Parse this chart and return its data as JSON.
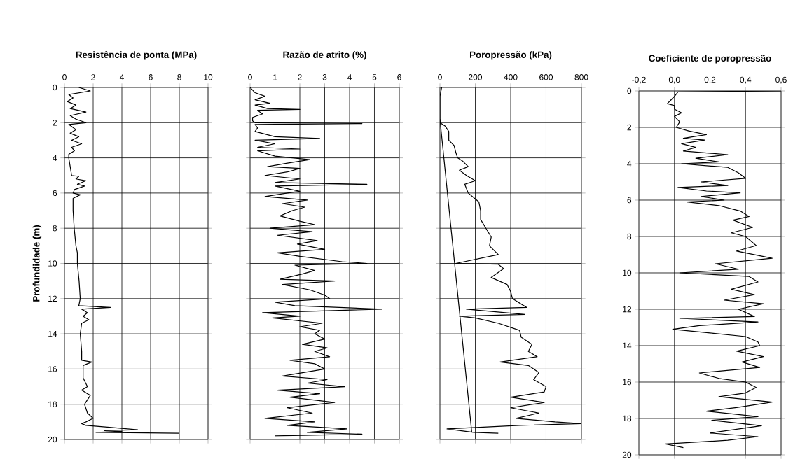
{
  "chart_data": [
    {
      "type": "line",
      "title": "Resistência de ponta (MPa)",
      "ylabel": "Profundidade (m)",
      "xlim": [
        0,
        10
      ],
      "xticks": [
        0,
        2,
        4,
        6,
        8,
        10
      ],
      "ylim": [
        20,
        0
      ],
      "yticks": [
        0,
        2,
        4,
        6,
        8,
        10,
        12,
        14,
        16,
        18,
        20
      ],
      "grid": true,
      "series": [
        {
          "color": "#000000",
          "x": [
            1.0,
            1.8,
            0.3,
            0.6,
            0.2,
            0.8,
            0.4,
            1.5,
            0.4,
            0.8,
            1.5,
            0.3,
            0.8,
            0.4,
            1.0,
            0.5,
            1.2,
            0.5,
            0.7,
            0.3,
            0.3,
            0.4,
            0.5,
            1.0,
            0.8,
            1.5,
            0.9,
            1.4,
            0.7,
            0.6,
            1.1,
            0.6,
            0.6,
            0.68,
            0.8,
            0.9,
            0.9,
            1.02,
            1.1,
            1.0,
            3.2,
            1.2,
            1.6,
            1.3,
            1.7,
            1.2,
            1.1,
            1.2,
            1.2,
            1.9,
            1.3,
            1.3,
            1.6,
            1.2,
            1.8,
            1.4,
            1.6,
            2.0,
            1.5,
            1.2,
            1.5,
            3.0,
            5.1,
            2.8,
            4.0,
            2.2,
            8.0
          ],
          "values": [
            0,
            0.2,
            0.4,
            0.6,
            0.8,
            1.0,
            1.2,
            1.4,
            1.6,
            1.8,
            2.0,
            2.1,
            2.4,
            2.6,
            2.8,
            3.0,
            3.2,
            3.4,
            3.6,
            3.8,
            4.0,
            4.5,
            5.0,
            5.05,
            5.2,
            5.3,
            5.5,
            5.6,
            5.8,
            6.0,
            6.1,
            6.3,
            7,
            8,
            9,
            9.4,
            10,
            11,
            12,
            12.4,
            12.5,
            12.6,
            12.8,
            13.0,
            13.2,
            13.4,
            14,
            15,
            15.5,
            15.6,
            15.8,
            16.5,
            17,
            17.2,
            17.5,
            18,
            18.5,
            18.8,
            19.0,
            19.1,
            19.2,
            19.3,
            19.45,
            19.5,
            19.55,
            19.6,
            19.65
          ]
        }
      ]
    },
    {
      "type": "line",
      "title": "Razão de atrito (%)",
      "xlim": [
        0,
        6
      ],
      "xticks": [
        0,
        1,
        2,
        3,
        4,
        5,
        6
      ],
      "ylim": [
        20,
        0
      ],
      "yticks": [
        0,
        2,
        4,
        6,
        8,
        10,
        12,
        14,
        16,
        18,
        20
      ],
      "grid": true,
      "tick_labels": "x",
      "series": [
        {
          "color": "#000000",
          "x": [
            0.0,
            0.2,
            0.6,
            0.2,
            0.8,
            0.2,
            0.7,
            2.0,
            0.3,
            0.5,
            0.1,
            0.1,
            0.2,
            4.5,
            0.2,
            0.3,
            0.2,
            1.0,
            2.8,
            0.2,
            1.0,
            0.3,
            2.0,
            0.3,
            1.0,
            2.4,
            1.5,
            0.7,
            2.0,
            1.5,
            0.6,
            2.0,
            1.0,
            4.7,
            1.0,
            2.0,
            1.5,
            0.6,
            2.3,
            1.3,
            2.2,
            1.7,
            1.2,
            2.0,
            2.6,
            0.8,
            2.5,
            1.1,
            2.7,
            1.9,
            3.0,
            1.1,
            2.0,
            3.7,
            4.7,
            1.8,
            2.6,
            2.1,
            1.2,
            3.4,
            1.3,
            2.4,
            3.0,
            3.2,
            1.0,
            1.8,
            5.3,
            0.5,
            2.0,
            0.9,
            2.9,
            2.0,
            2.8,
            2.6,
            3.0,
            2.1,
            3.1,
            2.6,
            3.2,
            1.6,
            2.6,
            3.0,
            1.3,
            3.1,
            2.3,
            3.8,
            1.1,
            2.8,
            1.6,
            3.4,
            1.5,
            2.5,
            0.6,
            2.6,
            1.5,
            3.9,
            2.3,
            4.5,
            1.0
          ],
          "values": [
            0,
            0.3,
            0.5,
            0.7,
            0.9,
            1.0,
            1.2,
            1.25,
            1.3,
            1.5,
            1.7,
            1.9,
            2.0,
            2.05,
            2.1,
            2.3,
            2.5,
            2.8,
            2.9,
            3.0,
            3.2,
            3.4,
            3.5,
            3.6,
            3.9,
            4.1,
            4.3,
            4.5,
            4.6,
            4.8,
            5.0,
            5.2,
            5.4,
            5.5,
            5.6,
            5.9,
            6.0,
            6.2,
            6.4,
            6.6,
            6.8,
            7.0,
            7.3,
            7.6,
            7.8,
            8.0,
            8.2,
            8.4,
            8.7,
            8.9,
            9.2,
            9.4,
            9.6,
            9.9,
            10.0,
            10.1,
            10.4,
            10.6,
            10.9,
            11.0,
            11.2,
            11.5,
            11.8,
            12.0,
            12.2,
            12.4,
            12.6,
            12.8,
            13.0,
            13.1,
            13.4,
            13.6,
            13.8,
            14.0,
            14.3,
            14.6,
            14.8,
            15.0,
            15.3,
            15.5,
            15.7,
            16.0,
            16.4,
            16.6,
            16.8,
            17.0,
            17.2,
            17.4,
            17.6,
            17.9,
            18.2,
            18.5,
            18.8,
            19.0,
            19.2,
            19.4,
            19.6,
            19.7,
            19.8
          ]
        }
      ]
    },
    {
      "type": "line",
      "title": "Poropressão (kPa)",
      "xlim": [
        0,
        800
      ],
      "xticks": [
        0,
        200,
        400,
        600,
        800
      ],
      "ylim": [
        20,
        0
      ],
      "yticks": [
        0,
        2,
        4,
        6,
        8,
        10,
        12,
        14,
        16,
        18,
        20
      ],
      "grid": true,
      "tick_labels": "x",
      "series": [
        {
          "color": "#000000",
          "x": [
            10,
            0,
            0,
            30,
            50,
            50,
            80,
            90,
            100,
            130,
            160,
            110,
            150,
            200,
            140,
            160,
            220,
            230,
            230,
            260,
            290,
            280,
            330,
            90,
            330,
            360,
            290,
            380,
            400,
            410,
            490,
            150,
            480,
            110,
            200,
            330,
            450,
            460,
            520,
            500,
            550,
            340,
            500,
            560,
            530,
            600,
            590,
            400,
            590,
            400,
            560,
            430,
            650,
            800,
            450,
            40,
            190,
            330
          ],
          "values": [
            0,
            0.5,
            2.0,
            2.2,
            2.5,
            3.0,
            3.3,
            3.7,
            4.0,
            4.2,
            4.5,
            4.7,
            5.0,
            5.3,
            5.5,
            6.0,
            6.5,
            7.0,
            7.5,
            8.0,
            8.5,
            9.0,
            9.5,
            10.0,
            10.05,
            10.3,
            10.8,
            11.2,
            11.6,
            12.0,
            12.5,
            12.6,
            12.9,
            13.0,
            13.1,
            13.4,
            13.8,
            14.2,
            14.6,
            15.0,
            15.3,
            15.6,
            15.8,
            16.2,
            16.6,
            17.0,
            17.3,
            17.6,
            17.9,
            18.2,
            18.5,
            18.8,
            19.0,
            19.1,
            19.2,
            19.4,
            19.6,
            19.65
          ]
        },
        {
          "color": "#000000",
          "x": [
            0,
            180
          ],
          "values": [
            1.8,
            19.6
          ]
        }
      ]
    },
    {
      "type": "line",
      "title": "Coeficiente de poropressão",
      "xlim": [
        -0.2,
        0.6
      ],
      "xticks": [
        {
          "value": -0.2,
          "label": "-0,2"
        },
        {
          "value": 0,
          "label": "0,0"
        },
        {
          "value": 0.2,
          "label": "0,2"
        },
        {
          "value": 0.4,
          "label": "0,4"
        },
        {
          "value": 0.6,
          "label": "0,6"
        }
      ],
      "ylim": [
        20,
        0
      ],
      "yticks": [
        0,
        2,
        4,
        6,
        8,
        10,
        12,
        14,
        16,
        18,
        20
      ],
      "grid": true,
      "series": [
        {
          "color": "#000000",
          "x": [
            0.6,
            0.02,
            0.0,
            -0.02,
            -0.04,
            0.0,
            0.0,
            0.04,
            0.0,
            0.03,
            0.01,
            0.08,
            0.18,
            0.05,
            0.17,
            0.04,
            0.12,
            0.05,
            0.3,
            0.12,
            0.25,
            0.04,
            0.3,
            0.36,
            0.4,
            0.15,
            0.3,
            0.02,
            0.18,
            0.37,
            0.15,
            0.28,
            0.07,
            0.25,
            0.37,
            0.42,
            0.33,
            0.44,
            0.32,
            0.4,
            0.46,
            0.35,
            0.55,
            0.23,
            0.36,
            0.03,
            0.42,
            0.47,
            0.32,
            0.45,
            0.28,
            0.5,
            0.36,
            0.45,
            0.03,
            0.47,
            0.14,
            -0.01,
            0.2,
            0.4,
            0.47,
            0.48,
            0.35,
            0.5,
            0.38,
            0.48,
            0.14,
            0.25,
            0.4,
            0.46,
            0.4,
            0.25,
            0.55,
            0.35,
            0.18,
            0.47,
            0.21,
            0.49,
            0.2,
            0.47,
            0.3,
            -0.05,
            0.05
          ],
          "values": [
            0,
            0.05,
            0.3,
            0.5,
            0.7,
            0.8,
            1.0,
            1.2,
            1.4,
            1.7,
            2.0,
            2.2,
            2.4,
            2.6,
            2.7,
            2.9,
            3.1,
            3.3,
            3.5,
            3.7,
            3.9,
            4.0,
            4.2,
            4.5,
            4.8,
            5.0,
            5.2,
            5.3,
            5.5,
            5.6,
            5.8,
            6.0,
            6.1,
            6.3,
            6.6,
            6.9,
            7.1,
            7.5,
            7.8,
            8.0,
            8.5,
            8.8,
            9.2,
            9.5,
            9.8,
            10.0,
            10.2,
            10.5,
            10.9,
            11.2,
            11.5,
            11.7,
            12.0,
            12.4,
            12.5,
            12.7,
            12.9,
            13.1,
            13.3,
            13.5,
            13.8,
            14.0,
            14.3,
            14.6,
            14.9,
            15.2,
            15.5,
            15.8,
            16.0,
            16.3,
            16.6,
            16.8,
            17.1,
            17.4,
            17.6,
            17.9,
            18.1,
            18.4,
            18.8,
            19.0,
            19.2,
            19.4,
            19.6
          ]
        }
      ]
    }
  ]
}
